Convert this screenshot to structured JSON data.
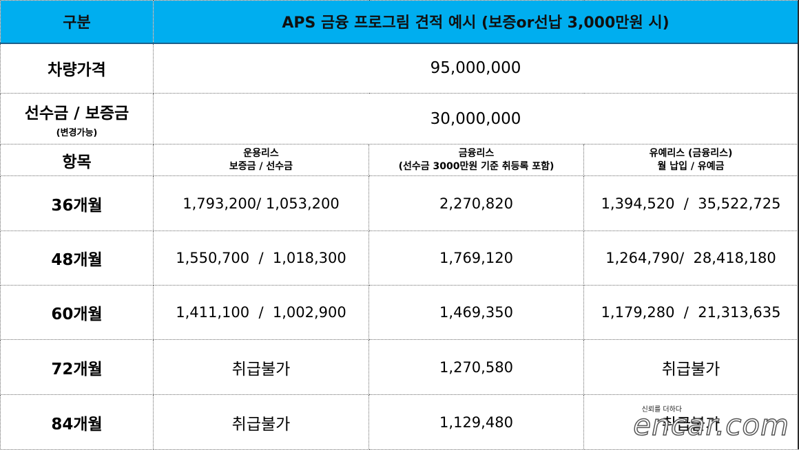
{
  "header": {
    "category": "구분",
    "title": "APS 금융 프로그림 견적 예시 (보증or선납 3,000만원 시)"
  },
  "vehicle_price": {
    "label": "차량가격",
    "value": "95,000,000"
  },
  "deposit": {
    "label": "선수금 / 보증금",
    "sublabel": "(변경가능)",
    "value": "30,000,000"
  },
  "items": {
    "label": "항목",
    "columns": [
      {
        "line1": "운용리스",
        "line2": "보증금 / 선수금"
      },
      {
        "line1": "금융리스",
        "line2": "(선수금 3000만원 기준 취등록 포함)"
      },
      {
        "line1": "유예리스 (금융리스)",
        "line2": "월 납입 / 유예금"
      }
    ]
  },
  "rows": [
    {
      "term": "36개월",
      "operating": "1,793,200/ 1,053,200",
      "financial": "2,270,820",
      "deferred": "1,394,520  /  35,522,725"
    },
    {
      "term": "48개월",
      "operating": "1,550,700  /  1,018,300",
      "financial": "1,769,120",
      "deferred": "1,264,790/  28,418,180"
    },
    {
      "term": "60개월",
      "operating": "1,411,100  /  1,002,900",
      "financial": "1,469,350",
      "deferred": "1,179,280  /  21,313,635"
    },
    {
      "term": "72개월",
      "operating": "취급불가",
      "financial": "1,270,580",
      "deferred": "취급불가"
    },
    {
      "term": "84개월",
      "operating": "취급불가",
      "financial": "1,129,480",
      "deferred": "취급불가"
    }
  ],
  "watermark": {
    "tagline": "신뢰를 더하다",
    "logo": "encar.com"
  }
}
